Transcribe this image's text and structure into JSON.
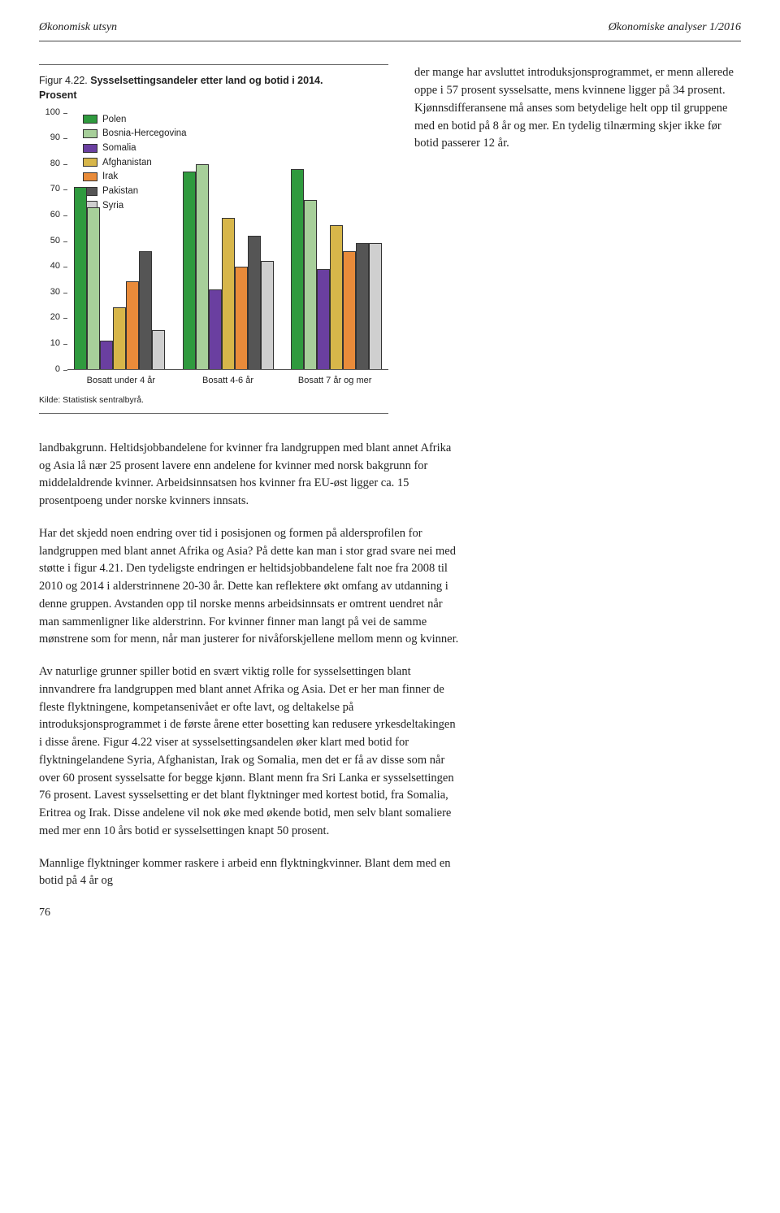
{
  "header": {
    "left": "Økonomisk utsyn",
    "right": "Økonomiske analyser 1/2016"
  },
  "figure": {
    "number": "Figur 4.22.",
    "title": "Sysselsettingsandeler etter land og botid i 2014.",
    "subtitle": "Prosent",
    "source": "Kilde: Statistisk sentralbyrå.",
    "ylim": [
      0,
      100
    ],
    "ytick_step": 10,
    "colors": {
      "Polen": "#2f9a3e",
      "Bosnia-Hercegovina": "#a7cf9a",
      "Somalia": "#6a3fa0",
      "Afghanistan": "#d7b64a",
      "Irak": "#e98b3a",
      "Pakistan": "#555555",
      "Syria": "#cfcfcf"
    },
    "legend_order": [
      "Polen",
      "Bosnia-Hercegovina",
      "Somalia",
      "Afghanistan",
      "Irak",
      "Pakistan",
      "Syria"
    ],
    "legend_labels": {
      "Polen": "Polen",
      "Bosnia-Hercegovina": "Bosnia-Hercegovina",
      "Somalia": "Somalia",
      "Afghanistan": "Afghanistan",
      "Irak": "Irak",
      "Pakistan": "Pakistan",
      "Syria": "Syria"
    },
    "groups": [
      {
        "label": "Bosatt under 4 år",
        "values": {
          "Polen": 71,
          "Bosnia-Hercegovina": 63,
          "Somalia": 11,
          "Afghanistan": 24,
          "Irak": 34,
          "Pakistan": 46,
          "Syria": 15
        }
      },
      {
        "label": "Bosatt 4-6 år",
        "values": {
          "Polen": 77,
          "Bosnia-Hercegovina": 80,
          "Somalia": 31,
          "Afghanistan": 59,
          "Irak": 40,
          "Pakistan": 52,
          "Syria": 42
        }
      },
      {
        "label": "Bosatt 7 år og mer",
        "values": {
          "Polen": 78,
          "Bosnia-Hercegovina": 66,
          "Somalia": 39,
          "Afghanistan": 56,
          "Irak": 46,
          "Pakistan": 49,
          "Syria": 49
        }
      }
    ],
    "axis_fontsize": 11,
    "legend_fontsize": 11.5,
    "background_color": "#ffffff",
    "border_color": "#555555"
  },
  "right_paragraph": "der mange har avsluttet introduksjonsprogrammet, er menn allerede oppe i 57 prosent sysselsatte, mens kvinnene ligger på 34 prosent. Kjønnsdifferansene må anses som betydelige helt opp til gruppene med en botid på 8 år og mer. En tydelig tilnærming skjer ikke før botid passerer 12 år.",
  "body_paragraphs": [
    "landbakgrunn. Heltidsjobbandelene for kvinner fra landgruppen med blant annet Afrika og Asia lå nær 25 prosent lavere enn andelene for kvinner med norsk bakgrunn for middelaldrende kvinner. Arbeidsinnsatsen hos kvinner fra EU-øst ligger ca. 15 prosentpoeng under norske kvinners innsats.",
    "Har det skjedd noen endring over tid i posisjonen og formen på aldersprofilen for landgruppen med blant annet Afrika og Asia? På dette kan man i stor grad svare nei med støtte i figur 4.21. Den tydeligste endringen er heltidsjobbandelene falt noe fra 2008 til 2010 og 2014 i alderstrinnene 20-30 år. Dette kan reflektere økt omfang av utdanning i denne gruppen. Avstanden opp til norske menns arbeidsinnsats er omtrent uendret når man sammenligner like alderstrinn. For kvinner finner man langt på vei de samme mønstrene som for menn, når man justerer for nivåforskjellene mellom menn og kvinner.",
    "Av naturlige grunner spiller botid en svært viktig rolle for sysselsettingen blant innvandrere fra landgruppen med blant annet Afrika og Asia. Det er her man finner de fleste flyktningene, kompetansenivået er ofte lavt, og deltakelse på introduksjonsprogrammet i de første årene etter bosetting kan redusere yrkesdeltakingen i disse årene. Figur 4.22 viser at sysselsettingsandelen øker klart med botid for flyktningelandene Syria, Afghanistan, Irak og Somalia, men det er få av disse som når over 60 prosent sysselsatte for begge kjønn. Blant menn fra Sri Lanka er sysselsettingen 76 prosent. Lavest sysselsetting er det blant flyktninger med kortest botid, fra Somalia, Eritrea og Irak. Disse andelene vil nok øke med økende botid, men selv blant somaliere med mer enn 10 års botid er sysselsettingen knapt 50 prosent.",
    "Mannlige flyktninger kommer raskere i arbeid enn flyktningkvinner. Blant dem med en botid på 4 år og"
  ],
  "page_number": "76"
}
